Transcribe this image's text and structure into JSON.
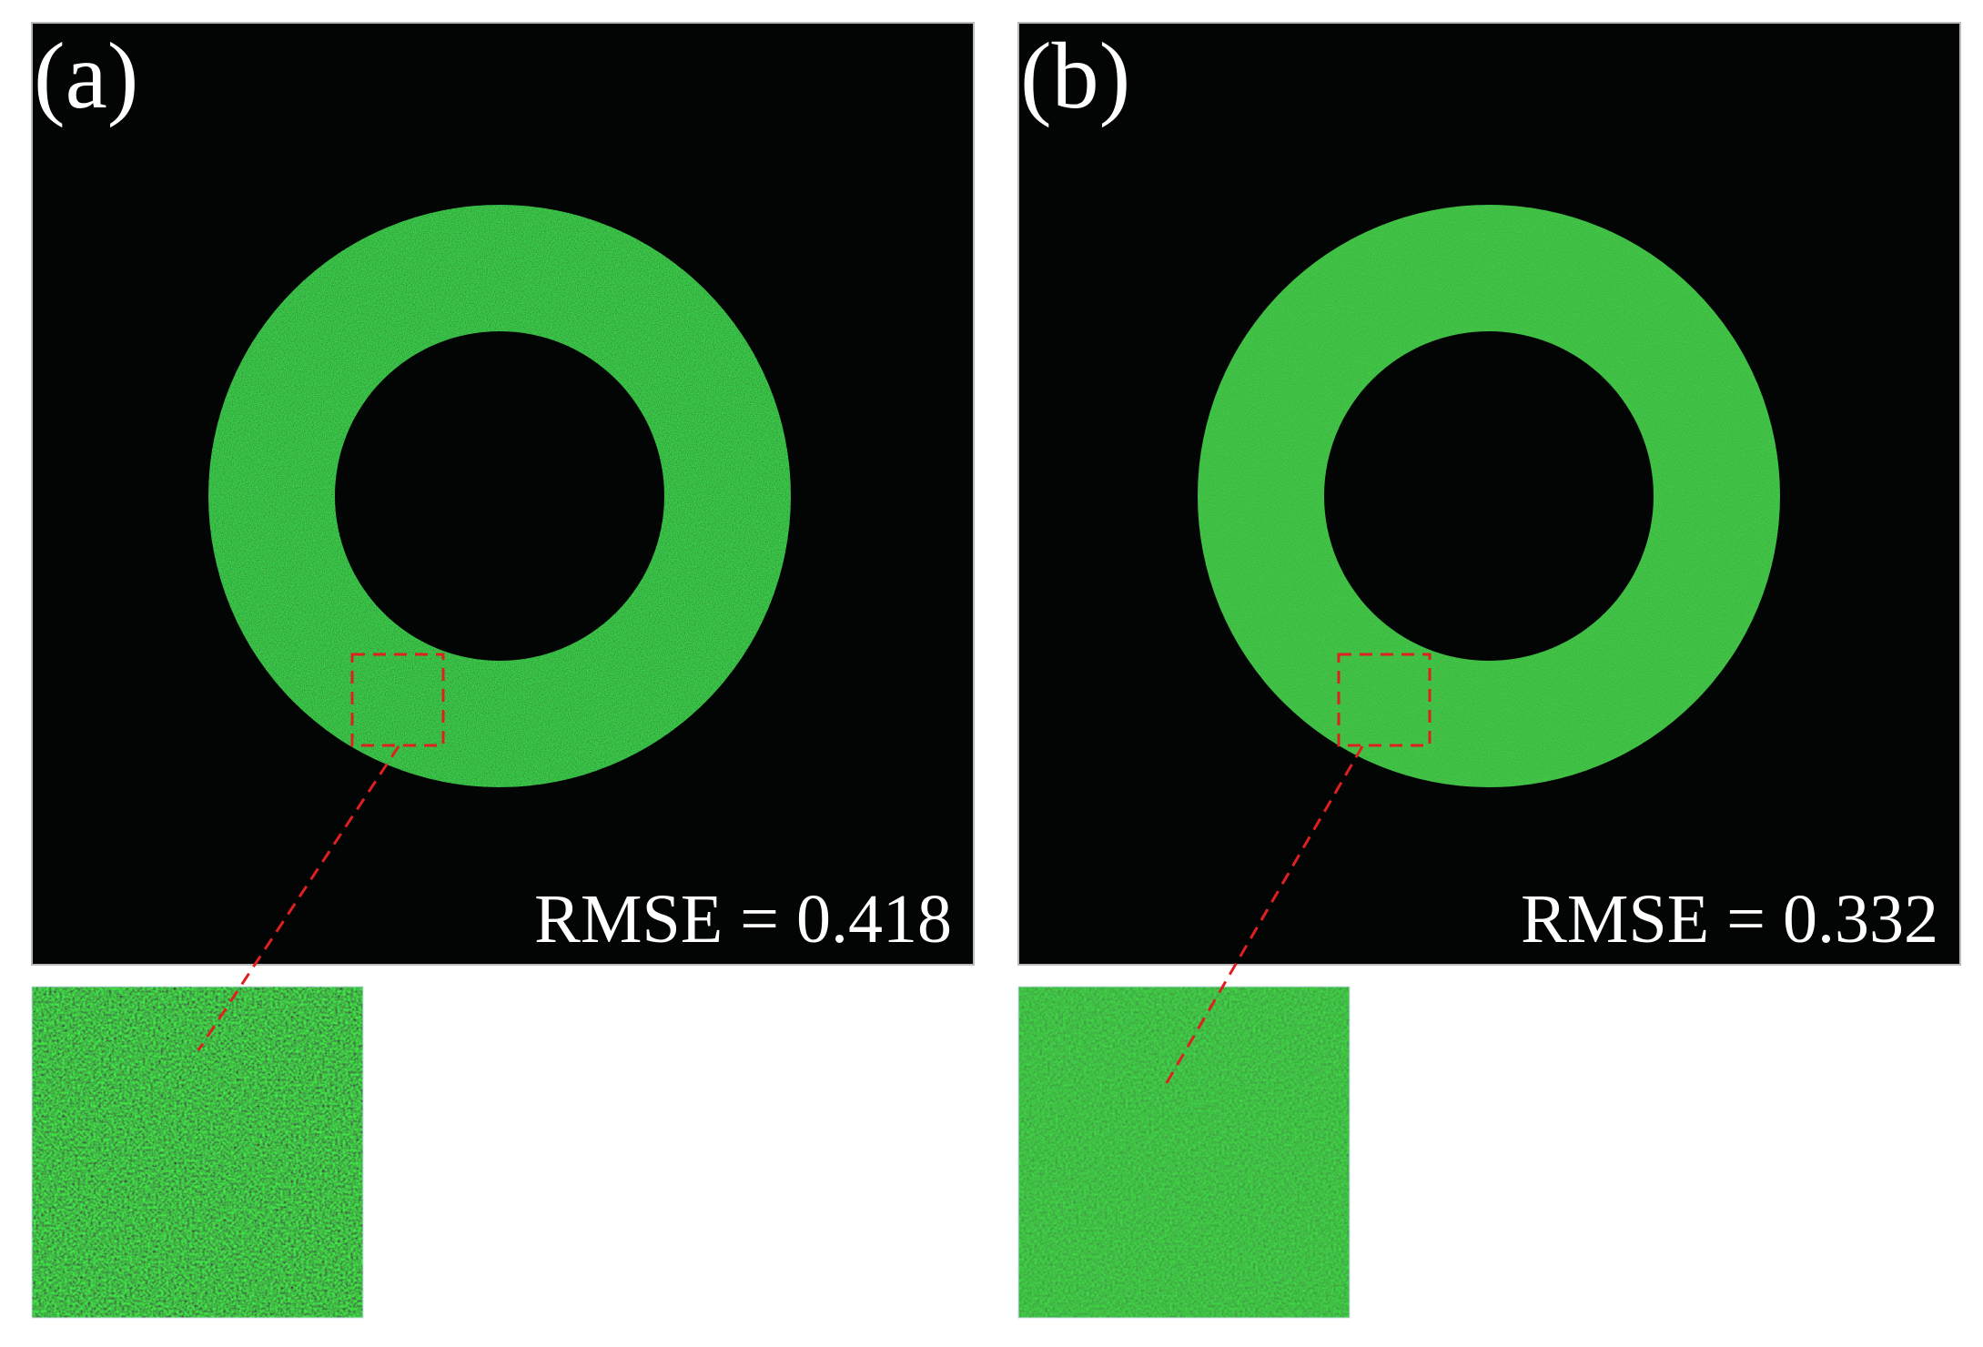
{
  "panels": [
    {
      "label": "(a)",
      "metric": "RMSE = 0.418"
    },
    {
      "label": "(b)",
      "metric": "RMSE = 0.332"
    }
  ]
}
